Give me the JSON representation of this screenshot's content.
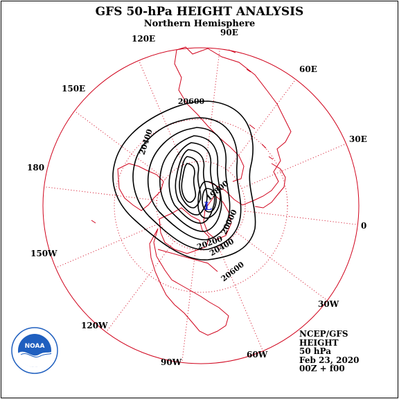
{
  "title": "GFS 50-hPa HEIGHT ANALYSIS",
  "subtitle": "Northern Hemisphere",
  "longitudes": [
    "90E",
    "60E",
    "30E",
    "0",
    "30W",
    "60W",
    "90W",
    "120W",
    "150W",
    "180",
    "150E",
    "120E"
  ],
  "contours": [
    "20600",
    "20400",
    "20200",
    "20000",
    "19800"
  ],
  "low_marker": "L",
  "info": {
    "model": "NCEP/GFS",
    "field": "HEIGHT",
    "level": "50 hPa",
    "date": "Feb 23, 2020",
    "run": "00Z + f00"
  },
  "colors": {
    "map": "#d0021b",
    "contour": "#000000",
    "low": "#1a22c8",
    "logo_blue": "#1f5fbf"
  },
  "logo_icon": "noaa-logo-icon",
  "logo_text": "NOAA"
}
